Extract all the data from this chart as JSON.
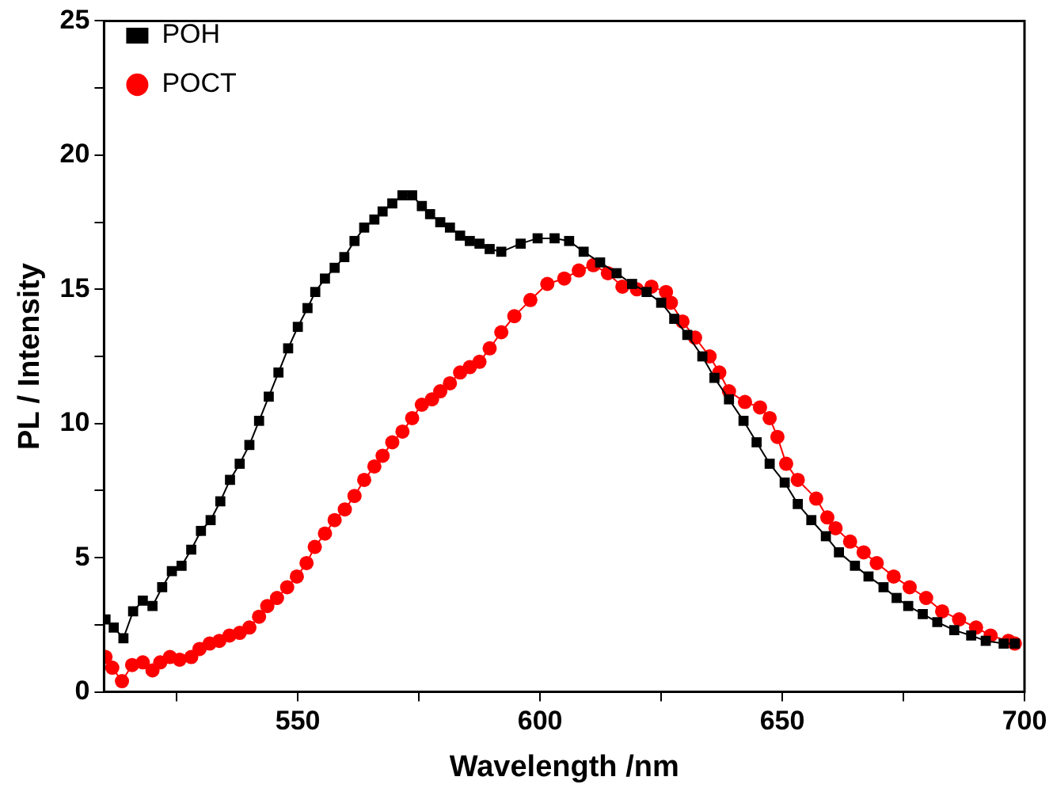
{
  "chart_data": {
    "type": "line",
    "xlabel": "Wavelength /nm",
    "ylabel": "PL / Intensity",
    "xlim": [
      510,
      700
    ],
    "xticks": [
      {
        "value": 525,
        "label": null
      },
      550,
      {
        "value": 575,
        "label": null
      },
      600,
      {
        "value": 625,
        "label": null
      },
      650,
      {
        "value": 675,
        "label": null
      },
      700
    ],
    "ylim": [
      0,
      25
    ],
    "yticks": [
      0,
      {
        "value": 2.5,
        "label": null
      },
      5,
      {
        "value": 7.5,
        "label": null
      },
      10,
      {
        "value": 12.5,
        "label": null
      },
      15,
      {
        "value": 17.5,
        "label": null
      },
      20,
      {
        "value": 22.5,
        "label": null
      },
      25
    ],
    "grid": false,
    "legend": "top left",
    "line_style": "solid",
    "series": [
      {
        "name": "POH",
        "color": "#000000",
        "marker": "square",
        "x": [
          510.3,
          512,
          514,
          516,
          518,
          520,
          522,
          524,
          526,
          528,
          530,
          532,
          534,
          536,
          538,
          540,
          542,
          544,
          546,
          548,
          550,
          552,
          553.6,
          555.6,
          557.6,
          559.6,
          561.7,
          563.7,
          565.8,
          567.5,
          569.5,
          571.6,
          573.6,
          575.6,
          577.3,
          579.4,
          581.4,
          583.5,
          585.5,
          587.5,
          589.6,
          592,
          596,
          599.5,
          603,
          606,
          609,
          612.4,
          615.8,
          619,
          622,
          625,
          627.7,
          630.4,
          633.5,
          636,
          639,
          642,
          644.7,
          647.4,
          650.5,
          653.2,
          656,
          659,
          661.7,
          665,
          667.8,
          670.9,
          673.6,
          676,
          679,
          682,
          685.5,
          689,
          692,
          695.7,
          698
        ],
        "values": [
          2.7,
          2.4,
          2.0,
          3.0,
          3.4,
          3.2,
          3.9,
          4.5,
          4.7,
          5.3,
          6.0,
          6.4,
          7.1,
          7.9,
          8.5,
          9.2,
          10.1,
          11.0,
          11.9,
          12.8,
          13.6,
          14.3,
          14.9,
          15.4,
          15.8,
          16.2,
          16.8,
          17.3,
          17.6,
          17.9,
          18.2,
          18.5,
          18.5,
          18.1,
          17.8,
          17.5,
          17.3,
          17.0,
          16.8,
          16.7,
          16.5,
          16.4,
          16.7,
          16.9,
          16.9,
          16.8,
          16.4,
          16.0,
          15.6,
          15.2,
          14.9,
          14.5,
          13.9,
          13.3,
          12.5,
          11.7,
          10.9,
          10.1,
          9.3,
          8.5,
          7.8,
          7.0,
          6.4,
          5.8,
          5.2,
          4.7,
          4.3,
          3.9,
          3.5,
          3.2,
          2.9,
          2.6,
          2.3,
          2.1,
          1.9,
          1.8,
          1.8
        ]
      },
      {
        "name": "POCT",
        "color": "#ff0000",
        "marker": "circle",
        "x": [
          510.3,
          511.7,
          513.7,
          515.8,
          518,
          520,
          521.6,
          523.6,
          525.6,
          528,
          529.7,
          531.8,
          533.8,
          535.9,
          538,
          540,
          542,
          543.7,
          545.7,
          547.8,
          549.8,
          551.8,
          553.5,
          555.6,
          557.6,
          559.7,
          561.7,
          563.7,
          565.8,
          567.5,
          569.5,
          571.6,
          573.6,
          575.6,
          577.7,
          579.4,
          581.4,
          583.5,
          585.5,
          587.5,
          589.6,
          592,
          594.7,
          598,
          601.5,
          605,
          608,
          611,
          614,
          617,
          620,
          623,
          626,
          627,
          629.4,
          632,
          635,
          637,
          639,
          642.3,
          645.4,
          647.4,
          649,
          650.8,
          653.2,
          657,
          659.3,
          661,
          664,
          666.8,
          669.5,
          673,
          676.3,
          679.7,
          683,
          686.5,
          690,
          693,
          696.7,
          698
        ],
        "values": [
          1.3,
          0.9,
          0.4,
          1.0,
          1.1,
          0.8,
          1.1,
          1.3,
          1.2,
          1.3,
          1.6,
          1.8,
          1.9,
          2.1,
          2.2,
          2.4,
          2.8,
          3.2,
          3.5,
          3.9,
          4.3,
          4.8,
          5.4,
          5.9,
          6.4,
          6.8,
          7.3,
          7.9,
          8.4,
          8.8,
          9.3,
          9.7,
          10.2,
          10.7,
          10.9,
          11.2,
          11.5,
          11.9,
          12.1,
          12.3,
          12.8,
          13.4,
          14.0,
          14.6,
          15.2,
          15.4,
          15.7,
          15.9,
          15.6,
          15.1,
          15.0,
          15.1,
          14.9,
          14.5,
          13.8,
          13.2,
          12.5,
          11.9,
          11.2,
          10.8,
          10.6,
          10.2,
          9.5,
          8.5,
          7.9,
          7.2,
          6.5,
          6.1,
          5.6,
          5.2,
          4.8,
          4.3,
          3.9,
          3.5,
          3.0,
          2.7,
          2.4,
          2.1,
          1.9,
          1.8
        ]
      }
    ]
  }
}
